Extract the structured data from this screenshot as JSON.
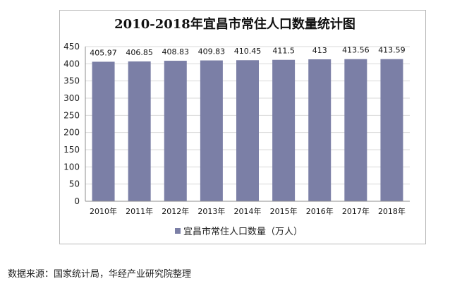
{
  "chart_data": {
    "type": "bar",
    "title": "2010-2018年宜昌市常住人口数量统计图",
    "categories": [
      "2010年",
      "2011年",
      "2012年",
      "2013年",
      "2014年",
      "2015年",
      "2016年",
      "2017年",
      "2018年"
    ],
    "series": [
      {
        "name": "宜昌市常住人口数量（万人）",
        "values": [
          405.97,
          406.85,
          408.83,
          409.83,
          410.45,
          411.5,
          413,
          413.56,
          413.59
        ],
        "labels": [
          "405.97",
          "406.85",
          "408.83",
          "409.83",
          "410.45",
          "411.5",
          "413",
          "413.56",
          "413.59"
        ],
        "color": "#7b7fa6"
      }
    ],
    "ylim": [
      0,
      450
    ],
    "y_ticks": [
      0,
      50,
      100,
      150,
      200,
      250,
      300,
      350,
      400,
      450
    ],
    "grid": true,
    "legend_position": "bottom"
  },
  "source_note": "数据来源：国家统计局，华经产业研究院整理"
}
